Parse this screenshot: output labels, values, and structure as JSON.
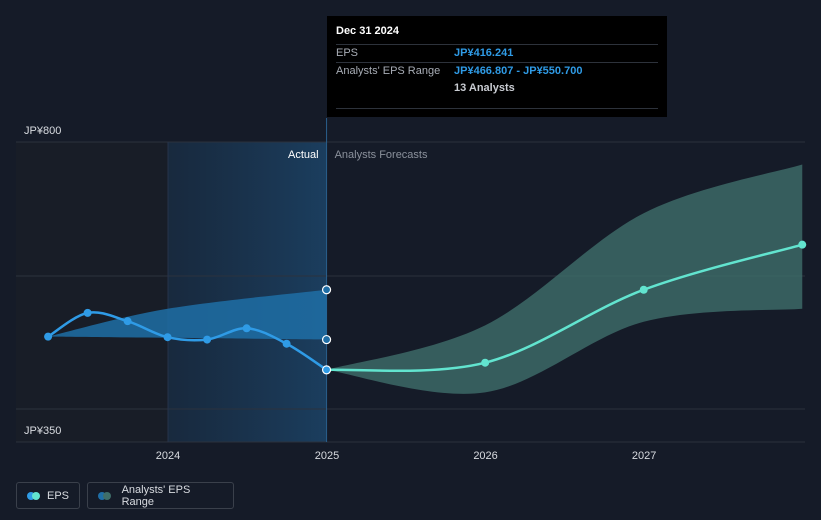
{
  "tooltip": {
    "date": "Dec 31 2024",
    "rows": [
      {
        "label": "EPS",
        "value": "JP¥416.241"
      },
      {
        "label": "Analysts' EPS Range",
        "value": "JP¥466.807 - JP¥550.700"
      },
      {
        "label": "",
        "value": "13 Analysts"
      }
    ]
  },
  "legend": {
    "eps_label": "EPS",
    "range_label": "Analysts' EPS Range"
  },
  "colors": {
    "background": "#151b28",
    "eps_actual": "#2f9be6",
    "eps_forecast": "#62e4cf",
    "range_actual": "#1f6ea6",
    "range_forecast": "#3f6e6a"
  },
  "chart_data": {
    "type": "line",
    "y_axis_labels": [
      "JP¥800",
      "JP¥350"
    ],
    "ylim": [
      350,
      800
    ],
    "x_ticks": [
      "2024",
      "2025",
      "2026",
      "2027"
    ],
    "period_labels": {
      "actual": "Actual",
      "forecast": "Analysts Forecasts"
    },
    "grid": true,
    "series": [
      {
        "name": "EPS",
        "actual": [
          {
            "x": "2023-03-31",
            "y": 472
          },
          {
            "x": "2023-06-30",
            "y": 512
          },
          {
            "x": "2023-09-30",
            "y": 498
          },
          {
            "x": "2023-12-31",
            "y": 471
          },
          {
            "x": "2024-03-31",
            "y": 467
          },
          {
            "x": "2024-06-30",
            "y": 486
          },
          {
            "x": "2024-09-30",
            "y": 460
          },
          {
            "x": "2024-12-31",
            "y": 416
          }
        ],
        "forecast": [
          {
            "x": "2024-12-31",
            "y": 416
          },
          {
            "x": "2025-12-31",
            "y": 428
          },
          {
            "x": "2026-12-31",
            "y": 551
          },
          {
            "x": "2027-12-31",
            "y": 627
          }
        ]
      },
      {
        "name": "Analysts' EPS Range",
        "actual": [
          {
            "x": "2023-03-31",
            "low": 472,
            "high": 472
          },
          {
            "x": "2023-12-31",
            "low": 470,
            "high": 519
          },
          {
            "x": "2024-12-31",
            "low": 467,
            "high": 551
          }
        ],
        "forecast": [
          {
            "x": "2024-12-31",
            "low": 416,
            "high": 416
          },
          {
            "x": "2025-12-31",
            "low": 378,
            "high": 491
          },
          {
            "x": "2026-12-31",
            "low": 497,
            "high": 680
          },
          {
            "x": "2027-12-31",
            "low": 519,
            "high": 762
          }
        ]
      }
    ]
  }
}
